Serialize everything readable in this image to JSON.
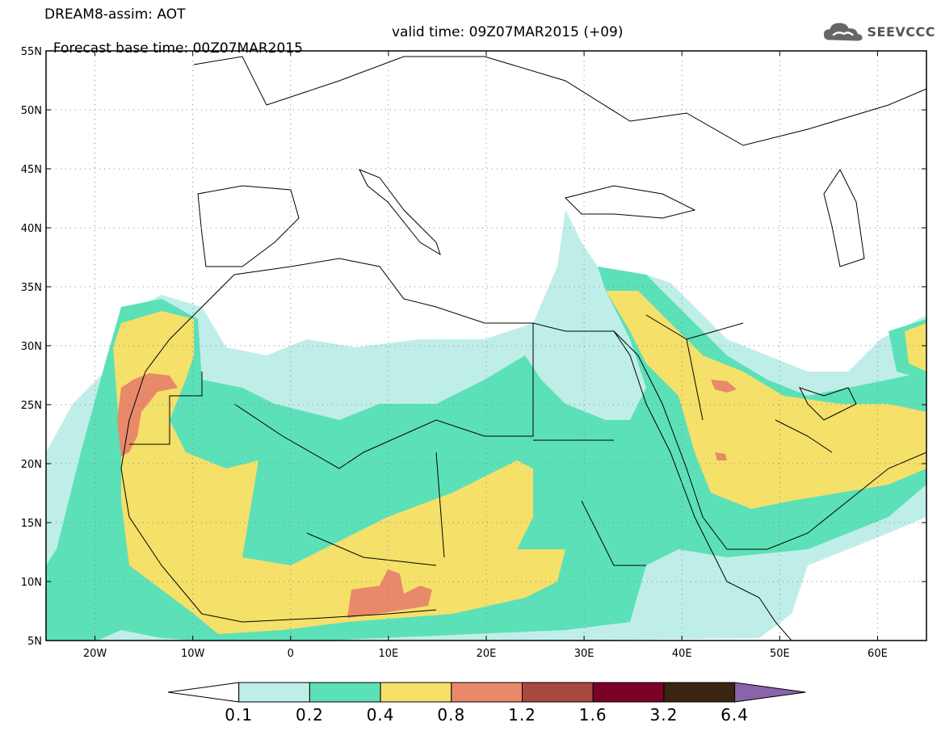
{
  "title": {
    "line1": "DREAM8-assim: AOT",
    "base_time": "Forecast base time: 00Z07MAR2015",
    "valid_time": "valid time: 09Z07MAR2015 (+09)"
  },
  "logo": {
    "text": "SEEVCCC",
    "icon": "cloud-icon"
  },
  "map": {
    "lon_range": [
      -25,
      65
    ],
    "lat_range": [
      5,
      55
    ],
    "lat_ticks": [
      "5N",
      "10N",
      "15N",
      "20N",
      "25N",
      "30N",
      "35N",
      "40N",
      "45N",
      "50N",
      "55N"
    ],
    "lon_ticks": [
      "20W",
      "10W",
      "0",
      "10E",
      "20E",
      "30E",
      "40E",
      "50E",
      "60E"
    ],
    "field": "Aerosol Optical Thickness"
  },
  "colorbar": {
    "levels": [
      "0.1",
      "0.2",
      "0.4",
      "0.8",
      "1.2",
      "1.6",
      "3.2",
      "6.4"
    ],
    "colors": [
      "#ffffff",
      "#bfeee8",
      "#5ce0b8",
      "#f5e06a",
      "#e8896a",
      "#a8493e",
      "#7a0025",
      "#3a2513",
      "#8a64a8"
    ]
  }
}
